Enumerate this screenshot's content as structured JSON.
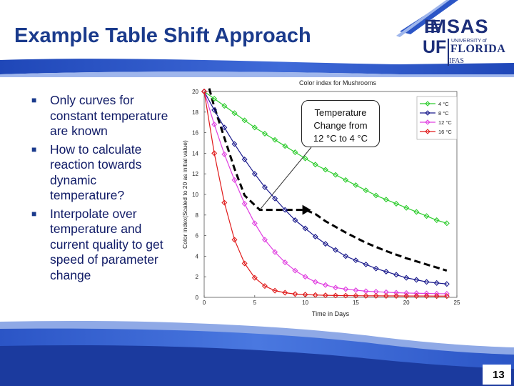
{
  "slide": {
    "title": "Example Table Shift Approach",
    "page_number": "13",
    "logo": {
      "imsas": "IMSAS",
      "uf": "UF",
      "university": "UNIVERSITY of",
      "florida": "FLORIDA",
      "ifas": "IFAS"
    },
    "bullets": [
      "Only curves for constant temperature are known",
      "How to calculate reaction towards dynamic temperature?",
      "Interpolate over temperature and current quality to get speed of parameter change"
    ],
    "callout": [
      "Temperature",
      "Change from",
      "12 °C to 4 °C"
    ]
  },
  "colors": {
    "title": "#1a3a8c",
    "header_blue": "#2b55c6",
    "s4": "#2ecc2e",
    "s8": "#1a1a8c",
    "s12": "#e040e0",
    "s16": "#e01a1a"
  },
  "chart_data": {
    "type": "line",
    "title": "Color index for Mushrooms",
    "xlabel": "Time in Days",
    "ylabel": "Color index(Scaled to 20 as initial value)",
    "xlim": [
      0,
      25
    ],
    "ylim": [
      0,
      20
    ],
    "x_ticks": [
      0,
      5,
      10,
      15,
      20,
      25
    ],
    "y_ticks": [
      0,
      2,
      4,
      6,
      8,
      10,
      12,
      14,
      16,
      18,
      20
    ],
    "legend_position": "top-right",
    "grid": false,
    "x": [
      0,
      1,
      2,
      3,
      4,
      5,
      6,
      7,
      8,
      9,
      10,
      11,
      12,
      13,
      14,
      15,
      16,
      17,
      18,
      19,
      20,
      21,
      22,
      23,
      24
    ],
    "series": [
      {
        "name": "4 °C",
        "color": "#2ecc2e",
        "marker": "diamond",
        "values": [
          20,
          19.3,
          18.6,
          17.9,
          17.2,
          16.5,
          15.9,
          15.3,
          14.7,
          14.1,
          13.5,
          12.9,
          12.4,
          11.9,
          11.4,
          10.9,
          10.4,
          9.9,
          9.5,
          9.1,
          8.7,
          8.3,
          7.9,
          7.5,
          7.2
        ]
      },
      {
        "name": "8 °C",
        "color": "#1a1a8c",
        "marker": "diamond",
        "values": [
          20,
          18.2,
          16.5,
          14.9,
          13.4,
          12.0,
          10.7,
          9.6,
          8.5,
          7.5,
          6.7,
          5.9,
          5.2,
          4.6,
          4.0,
          3.6,
          3.2,
          2.8,
          2.5,
          2.2,
          1.9,
          1.7,
          1.5,
          1.4,
          1.3
        ]
      },
      {
        "name": "12 °C",
        "color": "#e040e0",
        "marker": "diamond",
        "values": [
          20,
          16.8,
          13.9,
          11.4,
          9.1,
          7.2,
          5.6,
          4.4,
          3.4,
          2.6,
          2.0,
          1.5,
          1.2,
          0.95,
          0.8,
          0.7,
          0.6,
          0.55,
          0.5,
          0.45,
          0.42,
          0.4,
          0.38,
          0.36,
          0.35
        ]
      },
      {
        "name": "16 °C",
        "color": "#e01a1a",
        "marker": "diamond",
        "values": [
          20,
          14.0,
          9.2,
          5.6,
          3.3,
          1.9,
          1.1,
          0.65,
          0.45,
          0.32,
          0.27,
          0.23,
          0.2,
          0.18,
          0.17,
          0.16,
          0.15,
          0.15,
          0.14,
          0.14,
          0.13,
          0.13,
          0.13,
          0.12,
          0.12
        ]
      }
    ],
    "shift_path": {
      "color": "#000000",
      "style": "dashed",
      "x": [
        0.5,
        1,
        2,
        3,
        4,
        5.5,
        10,
        11,
        12,
        14,
        16,
        18,
        20,
        22,
        24
      ],
      "y": [
        20.3,
        18.5,
        15.5,
        12.5,
        9.9,
        8.5,
        8.5,
        8.1,
        7.4,
        6.3,
        5.3,
        4.5,
        3.8,
        3.2,
        2.6
      ]
    }
  }
}
